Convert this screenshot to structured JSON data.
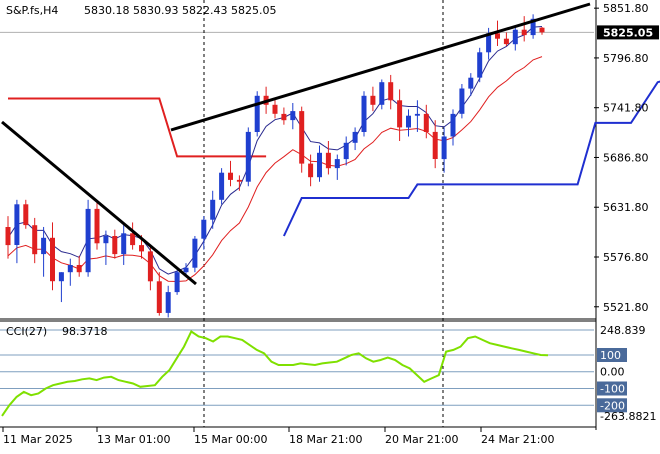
{
  "header": {
    "symbol": "S&P.fs,H4",
    "ohlc": "5830.18 5830.93 5822.43 5825.05"
  },
  "colors": {
    "bull": "#1f3fcf",
    "bear": "#e02020",
    "trendline": "#000000",
    "cci": "#7fe000",
    "upper_band": "#e02020",
    "lower_band": "#1f2fd0",
    "fast_ma": "#2a2a8f",
    "slow_ma": "#e02020",
    "badge_bg": "#4a6a9a"
  },
  "chart_data": [
    {
      "type": "candlestick",
      "title": "S&P.fs,H4",
      "x": [
        "11 Mar 2025",
        "13 Mar 01:00",
        "15 Mar 00:00",
        "18 Mar 21:00",
        "20 Mar 21:00",
        "24 Mar 21:00"
      ],
      "y_ticks": [
        5851.8,
        5796.8,
        5741.8,
        5686.8,
        5631.8,
        5576.8,
        5521.8
      ],
      "ylim": [
        5511.6,
        5856.4
      ],
      "last_price": "5825.05",
      "last_price_value": 5825.05,
      "candles": [
        [
          5610,
          5622,
          5575,
          5590
        ],
        [
          5590,
          5640,
          5570,
          5635
        ],
        [
          5635,
          5640,
          5608,
          5612
        ],
        [
          5612,
          5620,
          5570,
          5580
        ],
        [
          5580,
          5610,
          5555,
          5598
        ],
        [
          5598,
          5615,
          5540,
          5550
        ],
        [
          5550,
          5560,
          5527,
          5560
        ],
        [
          5560,
          5575,
          5545,
          5568
        ],
        [
          5568,
          5578,
          5555,
          5560
        ],
        [
          5560,
          5640,
          5555,
          5630
        ],
        [
          5630,
          5640,
          5585,
          5592
        ],
        [
          5592,
          5606,
          5568,
          5600
        ],
        [
          5600,
          5607,
          5575,
          5580
        ],
        [
          5580,
          5615,
          5568,
          5603
        ],
        [
          5603,
          5615,
          5585,
          5590
        ],
        [
          5590,
          5601,
          5575,
          5583
        ],
        [
          5583,
          5590,
          5540,
          5550
        ],
        [
          5550,
          5560,
          5512,
          5515
        ],
        [
          5515,
          5545,
          5510,
          5538
        ],
        [
          5538,
          5562,
          5535,
          5560
        ],
        [
          5560,
          5570,
          5555,
          5565
        ],
        [
          5565,
          5600,
          5560,
          5597
        ],
        [
          5597,
          5622,
          5585,
          5618
        ],
        [
          5618,
          5650,
          5608,
          5640
        ],
        [
          5640,
          5675,
          5635,
          5670
        ],
        [
          5670,
          5683,
          5655,
          5662
        ],
        [
          5662,
          5667,
          5650,
          5660
        ],
        [
          5660,
          5720,
          5655,
          5715
        ],
        [
          5715,
          5760,
          5710,
          5755
        ],
        [
          5755,
          5765,
          5735,
          5745
        ],
        [
          5745,
          5752,
          5730,
          5735
        ],
        [
          5735,
          5742,
          5723,
          5728
        ],
        [
          5728,
          5747,
          5718,
          5738
        ],
        [
          5738,
          5743,
          5670,
          5680
        ],
        [
          5680,
          5690,
          5655,
          5665
        ],
        [
          5665,
          5700,
          5660,
          5692
        ],
        [
          5692,
          5705,
          5668,
          5675
        ],
        [
          5675,
          5690,
          5662,
          5685
        ],
        [
          5685,
          5710,
          5678,
          5703
        ],
        [
          5703,
          5720,
          5695,
          5715
        ],
        [
          5715,
          5760,
          5710,
          5755
        ],
        [
          5755,
          5765,
          5738,
          5745
        ],
        [
          5745,
          5773,
          5740,
          5770
        ],
        [
          5770,
          5778,
          5740,
          5750
        ],
        [
          5750,
          5762,
          5705,
          5720
        ],
        [
          5720,
          5740,
          5710,
          5733
        ],
        [
          5733,
          5750,
          5715,
          5735
        ],
        [
          5735,
          5745,
          5708,
          5715
        ],
        [
          5715,
          5728,
          5675,
          5685
        ],
        [
          5685,
          5720,
          5670,
          5710
        ],
        [
          5710,
          5740,
          5700,
          5735
        ],
        [
          5735,
          5768,
          5730,
          5763
        ],
        [
          5763,
          5780,
          5755,
          5775
        ],
        [
          5775,
          5808,
          5770,
          5803
        ],
        [
          5803,
          5830,
          5795,
          5824
        ],
        [
          5824,
          5838,
          5810,
          5818
        ],
        [
          5818,
          5825,
          5810,
          5812
        ],
        [
          5812,
          5832,
          5805,
          5828
        ],
        [
          5828,
          5843,
          5815,
          5822
        ],
        [
          5822,
          5845,
          5818,
          5840
        ],
        [
          5830.18,
          5830.93,
          5822.43,
          5825.05
        ]
      ],
      "upper_band": [
        5752,
        5752,
        5752,
        5752,
        5752,
        5752,
        5752,
        5752,
        5752,
        5752,
        5752,
        5752,
        5752,
        5752,
        5752,
        5752,
        5742,
        5742,
        5742,
        5700,
        5687,
        5687,
        5687,
        5687,
        5687,
        5687,
        5687,
        5687,
        5687,
        5687,
        5687,
        5687,
        5687,
        5687,
        5687,
        5687,
        5687,
        5687,
        5687,
        5687,
        5687,
        5687,
        5687,
        5687,
        5687,
        5687,
        5687,
        5687,
        5687,
        5687,
        5687,
        5687,
        5687,
        5687,
        5687,
        5687,
        5687,
        5687,
        5687,
        5687,
        5687
      ],
      "lower_band": [
        5600,
        5600,
        5600,
        5600,
        5600,
        5600,
        5600,
        5600,
        5600,
        5600,
        5600,
        5600,
        5600,
        5600,
        5600,
        5600,
        5600,
        5600,
        5600,
        5600,
        5600,
        5600,
        5600,
        5600,
        5600,
        5600,
        5600,
        5600,
        5600,
        5600,
        5600,
        5600,
        5600,
        5600,
        5600,
        5600,
        5600,
        5600,
        5600,
        5600,
        5600,
        5600,
        5600,
        5600,
        5600,
        5600,
        5600,
        5600,
        5600,
        5600,
        5600,
        5600,
        5600,
        5600,
        5600,
        5600,
        5600,
        5600,
        5600,
        5600,
        5600
      ],
      "band_segments": {
        "upper": [
          [
            0,
            5752
          ],
          [
            17,
            5752
          ],
          [
            19,
            5688
          ],
          [
            29,
            5688
          ]
        ],
        "lower": [
          [
            31,
            5600
          ],
          [
            33,
            5642
          ],
          [
            45,
            5642
          ],
          [
            46,
            5657
          ],
          [
            64,
            5657
          ],
          [
            66,
            5725
          ],
          [
            70,
            5725
          ],
          [
            73,
            5770
          ],
          [
            76,
            5778
          ]
        ]
      },
      "fast_ma_note": "blue moving average",
      "slow_ma_note": "red moving average",
      "trendlines": [
        {
          "from": [
            0,
            5735
          ],
          "to": [
            34,
            5540
          ]
        },
        {
          "from": [
            31,
            5730
          ],
          "to": [
            100,
            5848
          ]
        }
      ],
      "dashed_markers": [
        "15 Mar 00:00",
        "20 Mar 21:00"
      ]
    },
    {
      "type": "line",
      "title": "CCI(27)",
      "value_label": "98.3718",
      "y_ticks": [
        "248.839",
        "100",
        "0.00",
        "-100",
        "-200",
        "-263.8821"
      ],
      "ylim": [
        -263.8821,
        248.839
      ],
      "levels": [
        248.839,
        100,
        0,
        -100,
        -200
      ],
      "values": [
        -263,
        -200,
        -150,
        -120,
        -140,
        -130,
        -100,
        -80,
        -70,
        -60,
        -55,
        -45,
        -40,
        -50,
        -35,
        -30,
        -50,
        -60,
        -70,
        -90,
        -85,
        -80,
        -30,
        10,
        80,
        150,
        240,
        210,
        200,
        180,
        210,
        210,
        200,
        190,
        160,
        130,
        110,
        60,
        40,
        40,
        40,
        50,
        45,
        40,
        50,
        55,
        60,
        80,
        100,
        110,
        80,
        60,
        70,
        85,
        70,
        40,
        20,
        -20,
        -60,
        -40,
        -20,
        120,
        130,
        150,
        200,
        210,
        190,
        170,
        160,
        150,
        140,
        130,
        120,
        110,
        100,
        98
      ]
    }
  ]
}
